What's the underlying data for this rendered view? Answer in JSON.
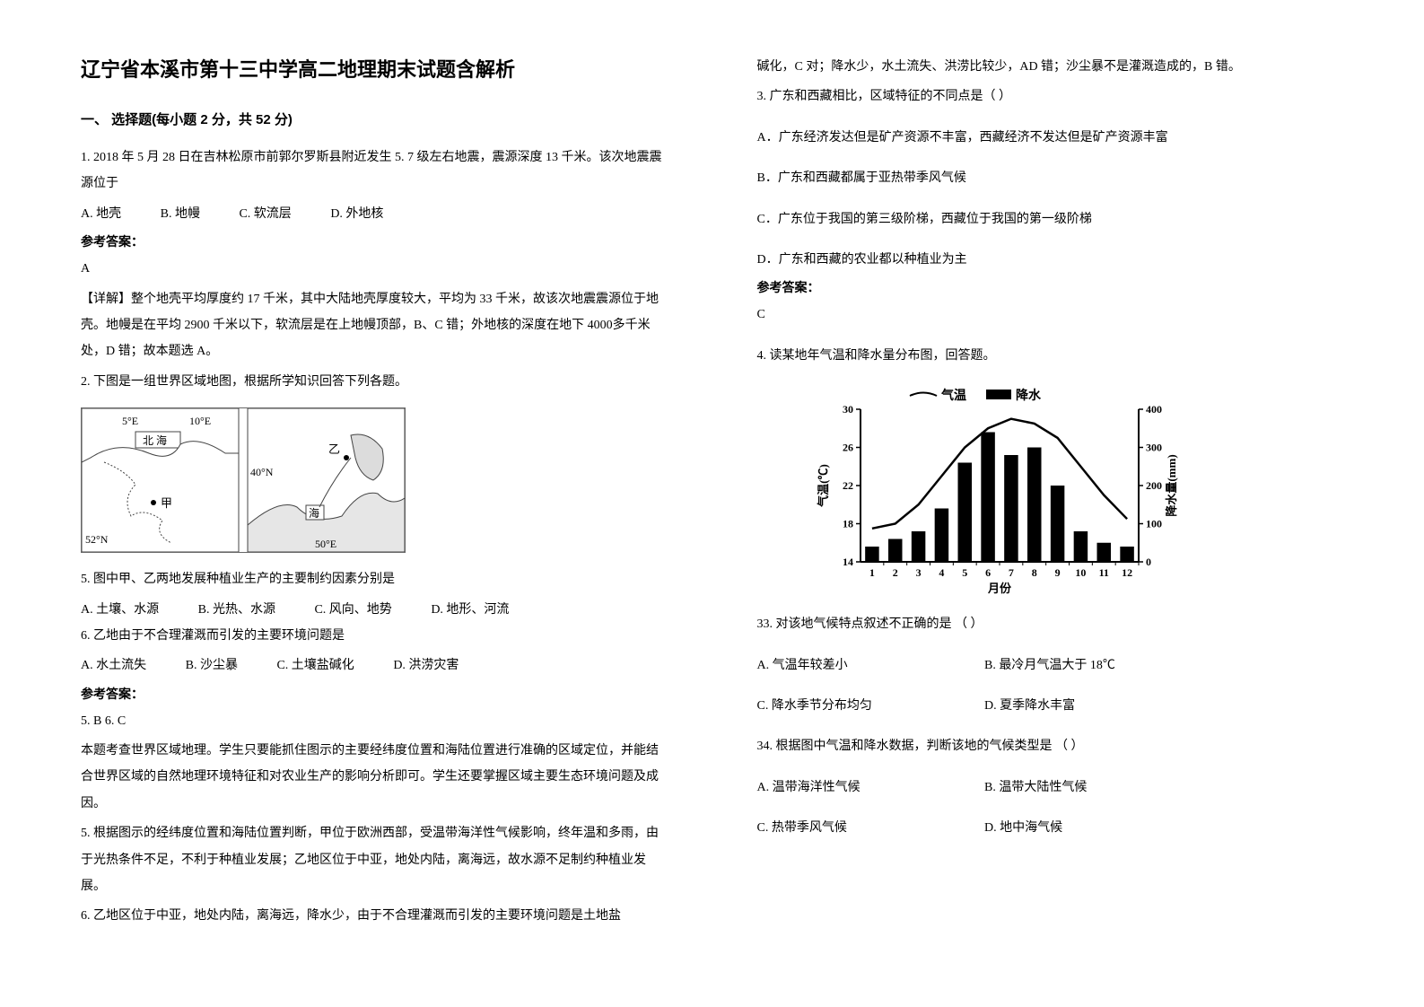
{
  "title": "辽宁省本溪市第十三中学高二地理期末试题含解析",
  "section1": {
    "heading": "一、 选择题(每小题 2 分，共 52 分)"
  },
  "q1": {
    "stem": "1. 2018 年 5 月 28 日在吉林松原市前郭尔罗斯县附近发生 5. 7 级左右地震，震源深度 13 千米。该次地震震源位于",
    "optA": "A. 地壳",
    "optB": "B. 地幔",
    "optC": "C. 软流层",
    "optD": "D. 外地核",
    "answer_label": "参考答案：",
    "answer": "A",
    "explain": "【详解】整个地壳平均厚度约 17 千米，其中大陆地壳厚度较大，平均为 33 千米，故该次地震震源位于地壳。地幔是在平均 2900 千米以下，软流层是在上地幔顶部，B、C 错；外地核的深度在地下 4000多千米处，D 错；故本题选 A。"
  },
  "q2": {
    "stem": "2. 下图是一组世界区域地图，根据所学知识回答下列各题。",
    "map": {
      "labels": {
        "n5e": "5°E",
        "n10e": "10°E",
        "beihai": "北 海",
        "jia": "甲",
        "n52": "52°N",
        "n40": "40°N",
        "n50e": "50°E",
        "yi": "乙",
        "hai": "海"
      },
      "border_color": "#555555",
      "fill_color": "#ffffff",
      "font_size": 12
    },
    "sub5": "5. 图中甲、乙两地发展种植业生产的主要制约因素分别是",
    "sub5_optA": "A. 土壤、水源",
    "sub5_optB": "B. 光热、水源",
    "sub5_optC": "C. 风向、地势",
    "sub5_optD": "D. 地形、河流",
    "sub6": "6. 乙地由于不合理灌溉而引发的主要环境问题是",
    "sub6_optA": "A. 水土流失",
    "sub6_optB": "B. 沙尘暴",
    "sub6_optC": "C. 土壤盐碱化",
    "sub6_optD": "D. 洪涝灾害",
    "answer_label": "参考答案：",
    "answer": "5. B    6. C",
    "explain1": "本题考查世界区域地理。学生只要能抓住图示的主要经纬度位置和海陆位置进行准确的区域定位，并能结合世界区域的自然地理环境特征和对农业生产的影响分析即可。学生还要掌握区域主要生态环境问题及成因。",
    "explain2": "5. 根据图示的经纬度位置和海陆位置判断，甲位于欧洲西部，受温带海洋性气候影响，终年温和多雨，由于光热条件不足，不利于种植业发展；乙地区位于中亚，地处内陆，离海远，故水源不足制约种植业发展。",
    "explain3": "6. 乙地区位于中亚，地处内陆，离海远，降水少，由于不合理灌溉而引发的主要环境问题是土地盐"
  },
  "col2_cont": "碱化，C 对；降水少，水土流失、洪涝比较少，AD 错；沙尘暴不是灌溉造成的，B 错。",
  "q3": {
    "stem": "3. 广东和西藏相比，区域特征的不同点是（   ）",
    "optA": "A．广东经济发达但是矿产资源不丰富，西藏经济不发达但是矿产资源丰富",
    "optB": "B．广东和西藏都属于亚热带季风气候",
    "optC": "C．广东位于我国的第三级阶梯，西藏位于我国的第一级阶梯",
    "optD": "D．广东和西藏的农业都以种植业为主",
    "answer_label": "参考答案：",
    "answer": "C"
  },
  "q4": {
    "stem": "4. 读某地年气温和降水量分布图，回答题。",
    "chart": {
      "type": "combo-bar-line",
      "months": [
        "1",
        "2",
        "3",
        "4",
        "5",
        "6",
        "7",
        "8",
        "9",
        "10",
        "11",
        "12"
      ],
      "temp_values": [
        17.5,
        18,
        20,
        23,
        26,
        28,
        29,
        28.5,
        27,
        24,
        21,
        18.5
      ],
      "precip_values": [
        40,
        60,
        80,
        140,
        260,
        340,
        280,
        300,
        200,
        80,
        50,
        40
      ],
      "y_left_label": "气温(℃)",
      "y_right_label": "降水量(mm)",
      "x_label": "月份",
      "legend_temp": "气温",
      "legend_precip": "降水",
      "y_left_ticks": [
        14,
        18,
        22,
        26,
        30
      ],
      "y_right_ticks": [
        0,
        100,
        200,
        300,
        400
      ],
      "bar_color": "#000000",
      "line_color": "#000000",
      "axis_color": "#000000",
      "title_fontsize": 14,
      "tick_fontsize": 12
    },
    "sub33": "33. 对该地气候特点叙述不正确的是    （     ）",
    "sub33_optA": "A. 气温年较差小",
    "sub33_optB": "B. 最冷月气温大于 18℃",
    "sub33_optC": "C. 降水季节分布均匀",
    "sub33_optD": "D. 夏季降水丰富",
    "sub34": "34. 根据图中气温和降水数据，判断该地的气候类型是    （     ）",
    "sub34_optA": "A. 温带海洋性气候",
    "sub34_optB": "B. 温带大陆性气候",
    "sub34_optC": "C. 热带季风气候",
    "sub34_optD": "D. 地中海气候"
  }
}
